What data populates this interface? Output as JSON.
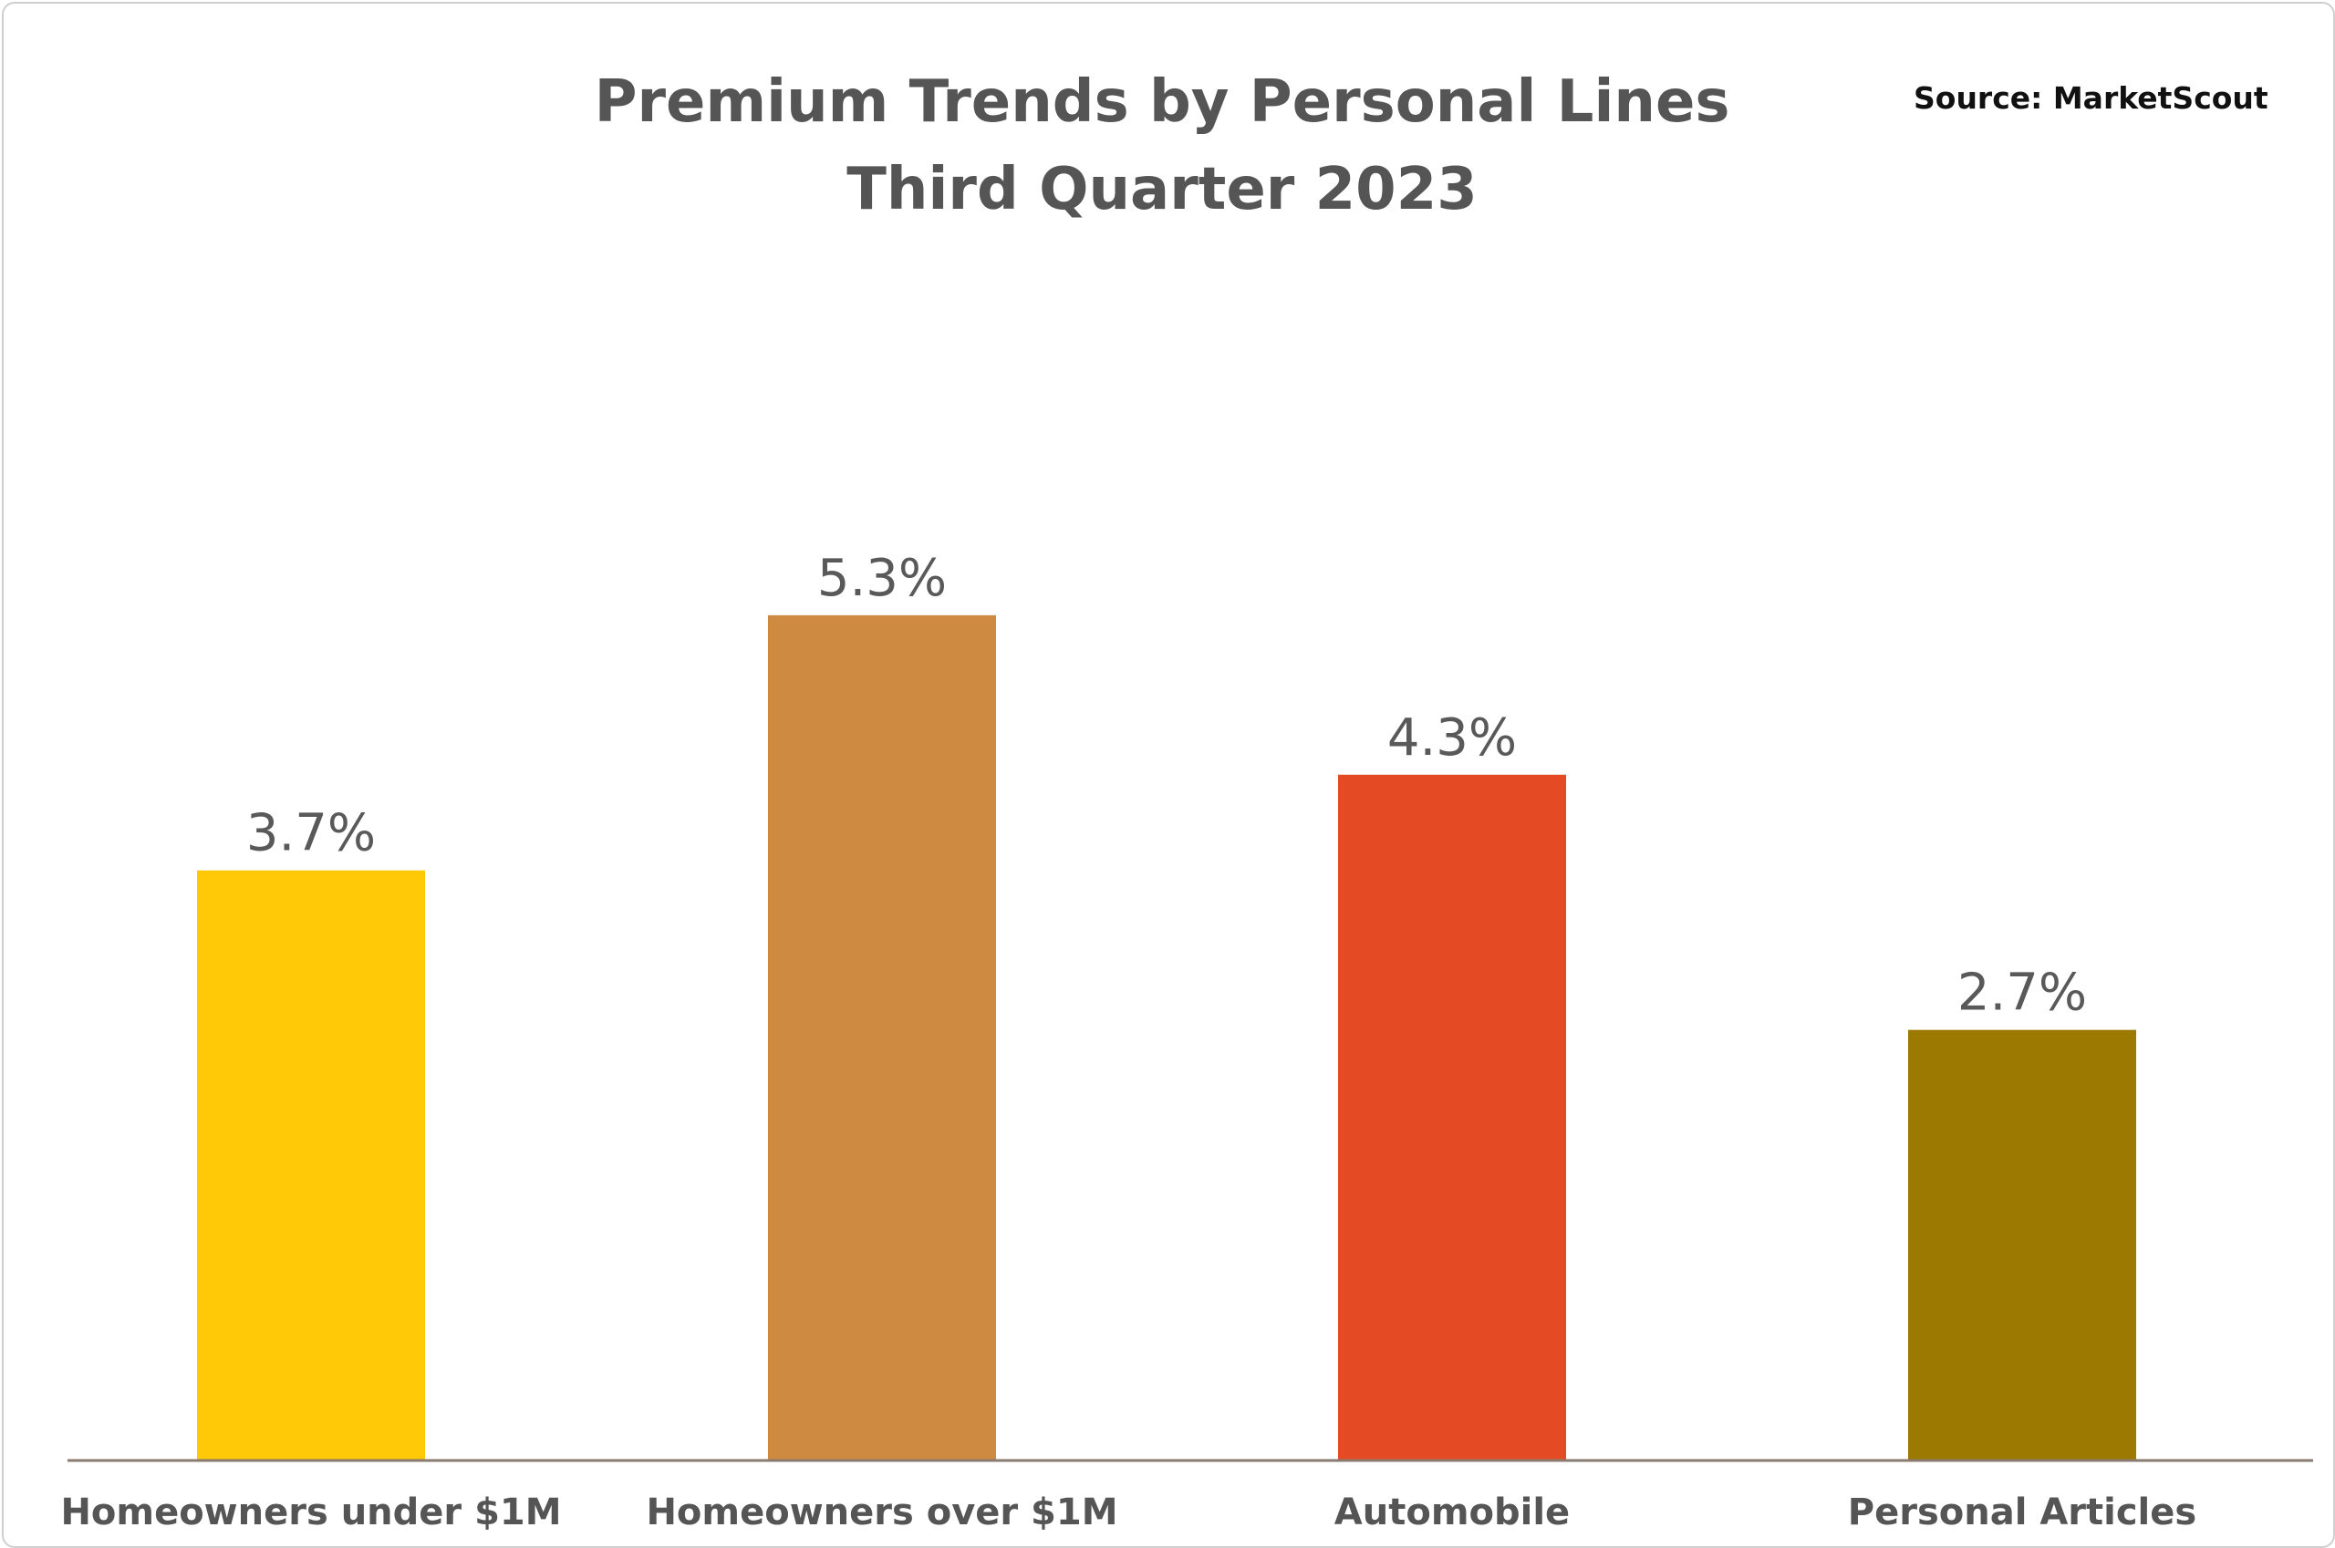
{
  "chart_data": {
    "type": "bar",
    "title": "Premium Trends by Personal Lines",
    "subtitle": "Third Quarter 2023",
    "source": "Source: MarketScout",
    "categories": [
      "Homeowners under $1M",
      "Homeowners over $1M",
      "Automobile",
      "Personal Articles"
    ],
    "values": [
      3.7,
      5.3,
      4.3,
      2.7
    ],
    "data_labels": [
      "3.7%",
      "5.3%",
      "4.3%",
      "2.7%"
    ],
    "colors": [
      "#FFC907",
      "#CD8A40",
      "#E44A23",
      "#9C7A02"
    ],
    "xlabel": "",
    "ylabel": "",
    "ylim": [
      0,
      7.5
    ],
    "grid": false,
    "legend": "none"
  }
}
